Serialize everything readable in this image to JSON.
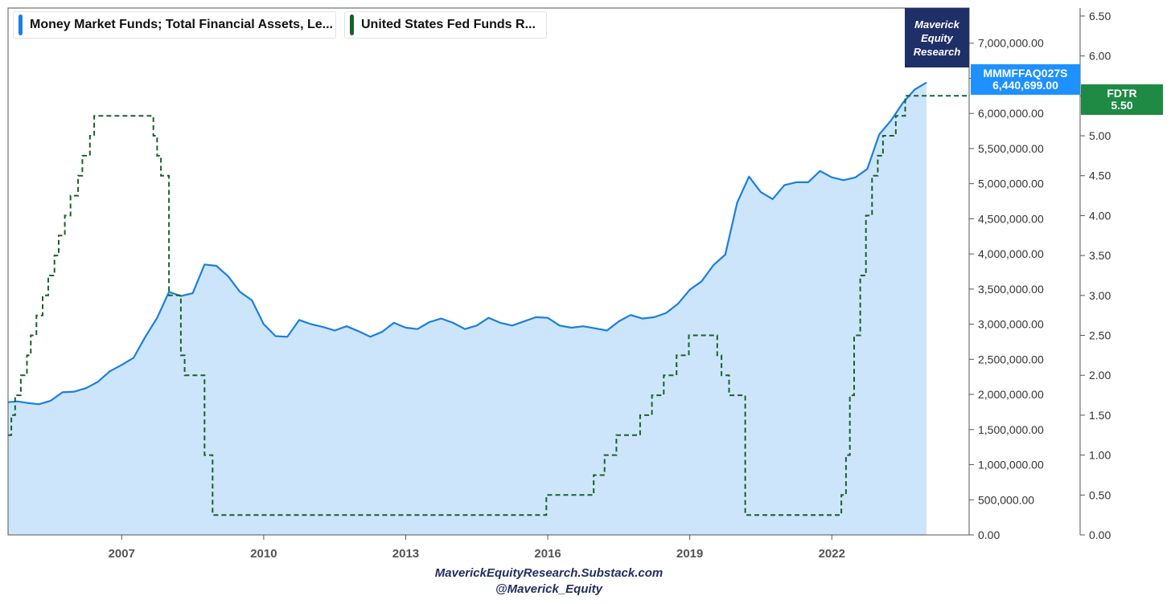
{
  "legend": {
    "series1": "Money Market Funds; Total Financial Assets, Le...",
    "series2": "United States Fed Funds R..."
  },
  "brand": {
    "line1": "Maverick",
    "line2": "Equity",
    "line3": "Research"
  },
  "tags": {
    "mmmf_code": "MMMFFAQ027S",
    "mmmf_value": "6,440,699.00",
    "fdtr_code": "FDTR",
    "fdtr_value": "5.50"
  },
  "footer": {
    "line1": "MaverickEquityResearch.Substack.com",
    "line2": "@Maverick_Equity"
  },
  "colors": {
    "mmmf_line": "#1a7fe0",
    "mmmf_fill": "#cde5fb",
    "fdtr_line": "#17612b",
    "mmmf_tag": "#1e90ff",
    "fdtr_tag": "#1e8a43",
    "brand_bg": "#1f3069"
  },
  "chart_data": {
    "type": "line",
    "x_tick_labels": [
      "2007",
      "2010",
      "2013",
      "2016",
      "2019",
      "2022"
    ],
    "x_tick_years": [
      2007,
      2010,
      2013,
      2016,
      2019,
      2022
    ],
    "xlim": [
      2004.6,
      2024.9
    ],
    "left_axis": {
      "ylim": [
        0,
        7500000
      ],
      "tick_values": [
        0,
        500000,
        1000000,
        1500000,
        2000000,
        2500000,
        3000000,
        3500000,
        4000000,
        4500000,
        5000000,
        5500000,
        6000000,
        6500000,
        7000000
      ],
      "tick_labels": [
        "0.00",
        "500,000.00",
        "1,000,000.00",
        "1,500,000.00",
        "2,000,000.00",
        "2,500,000.00",
        "3,000,000.00",
        "3,500,000.00",
        "4,000,000.00",
        "4,500,000.00",
        "5,000,000.00",
        "5,500,000.00",
        "6,000,000.00",
        "6,500,000.00",
        "7,000,000.00"
      ]
    },
    "right_axis": {
      "ylim": [
        0,
        6.6
      ],
      "tick_values": [
        0,
        0.5,
        1,
        1.5,
        2,
        2.5,
        3,
        3.5,
        4,
        4.5,
        5,
        5.5,
        6,
        6.5
      ],
      "tick_labels": [
        "0.00",
        "0.50",
        "1.00",
        "1.50",
        "2.00",
        "2.50",
        "3.00",
        "3.50",
        "4.00",
        "4.50",
        "5.00",
        "5.50",
        "6.00",
        "6.50"
      ]
    },
    "series": [
      {
        "name": "Money Market Funds; Total Financial Assets, Le...",
        "axis": "left",
        "style": "area",
        "x": [
          2004.6,
          2004.8,
          2005.0,
          2005.25,
          2005.5,
          2005.75,
          2006.0,
          2006.25,
          2006.5,
          2006.75,
          2007.0,
          2007.25,
          2007.5,
          2007.75,
          2008.0,
          2008.25,
          2008.5,
          2008.75,
          2009.0,
          2009.25,
          2009.5,
          2009.75,
          2010.0,
          2010.25,
          2010.5,
          2010.75,
          2011.0,
          2011.25,
          2011.5,
          2011.75,
          2012.0,
          2012.25,
          2012.5,
          2012.75,
          2013.0,
          2013.25,
          2013.5,
          2013.75,
          2014.0,
          2014.25,
          2014.5,
          2014.75,
          2015.0,
          2015.25,
          2015.5,
          2015.75,
          2016.0,
          2016.25,
          2016.5,
          2016.75,
          2017.0,
          2017.25,
          2017.5,
          2017.75,
          2018.0,
          2018.25,
          2018.5,
          2018.75,
          2019.0,
          2019.25,
          2019.5,
          2019.75,
          2020.0,
          2020.25,
          2020.5,
          2020.75,
          2021.0,
          2021.25,
          2021.5,
          2021.75,
          2022.0,
          2022.25,
          2022.5,
          2022.75,
          2023.0,
          2023.25,
          2023.5,
          2023.75,
          2024.0
        ],
        "values": [
          1890000,
          1900000,
          1880000,
          1860000,
          1910000,
          2030000,
          2040000,
          2090000,
          2180000,
          2330000,
          2420000,
          2520000,
          2820000,
          3090000,
          3460000,
          3400000,
          3440000,
          3850000,
          3830000,
          3680000,
          3460000,
          3340000,
          3000000,
          2830000,
          2820000,
          3060000,
          3000000,
          2960000,
          2910000,
          2970000,
          2900000,
          2820000,
          2890000,
          3020000,
          2950000,
          2930000,
          3030000,
          3080000,
          3020000,
          2930000,
          2980000,
          3090000,
          3020000,
          2980000,
          3040000,
          3100000,
          3090000,
          2980000,
          2950000,
          2970000,
          2940000,
          2910000,
          3040000,
          3130000,
          3080000,
          3100000,
          3160000,
          3290000,
          3490000,
          3610000,
          3840000,
          3990000,
          4730000,
          5100000,
          4880000,
          4780000,
          4980000,
          5020000,
          5020000,
          5180000,
          5090000,
          5050000,
          5090000,
          5210000,
          5700000,
          5900000,
          6150000,
          6340000,
          6440000
        ]
      },
      {
        "name": "United States Fed Funds R...",
        "axis": "right",
        "style": "dashed-step",
        "x": [
          2004.6,
          2004.67,
          2004.75,
          2004.87,
          2005.0,
          2005.08,
          2005.2,
          2005.33,
          2005.45,
          2005.58,
          2005.67,
          2005.8,
          2005.92,
          2006.08,
          2006.17,
          2006.33,
          2006.42,
          2006.5,
          2007.67,
          2007.75,
          2007.83,
          2008.0,
          2008.08,
          2008.25,
          2008.33,
          2008.75,
          2008.83,
          2008.92,
          2008.97,
          2015.97,
          2016.9,
          2016.97,
          2017.2,
          2017.45,
          2017.95,
          2018.2,
          2018.45,
          2018.72,
          2018.98,
          2019.58,
          2019.67,
          2019.83,
          2020.17,
          2020.21,
          2022.2,
          2022.3,
          2022.38,
          2022.47,
          2022.6,
          2022.72,
          2022.85,
          2022.97,
          2023.08,
          2023.15,
          2023.35,
          2023.55,
          2024.9
        ],
        "values": [
          1.25,
          1.5,
          1.75,
          2.0,
          2.25,
          2.5,
          2.75,
          3.0,
          3.25,
          3.5,
          3.75,
          4.0,
          4.25,
          4.5,
          4.75,
          5.0,
          5.25,
          5.25,
          5.0,
          4.75,
          4.5,
          3.0,
          3.0,
          2.25,
          2.0,
          1.0,
          1.0,
          0.25,
          0.25,
          0.5,
          0.5,
          0.75,
          1.0,
          1.25,
          1.5,
          1.75,
          2.0,
          2.25,
          2.5,
          2.25,
          2.0,
          1.75,
          0.25,
          0.25,
          0.5,
          1.0,
          1.75,
          2.5,
          3.25,
          4.0,
          4.5,
          4.75,
          5.0,
          5.0,
          5.25,
          5.5,
          5.5
        ]
      }
    ]
  }
}
